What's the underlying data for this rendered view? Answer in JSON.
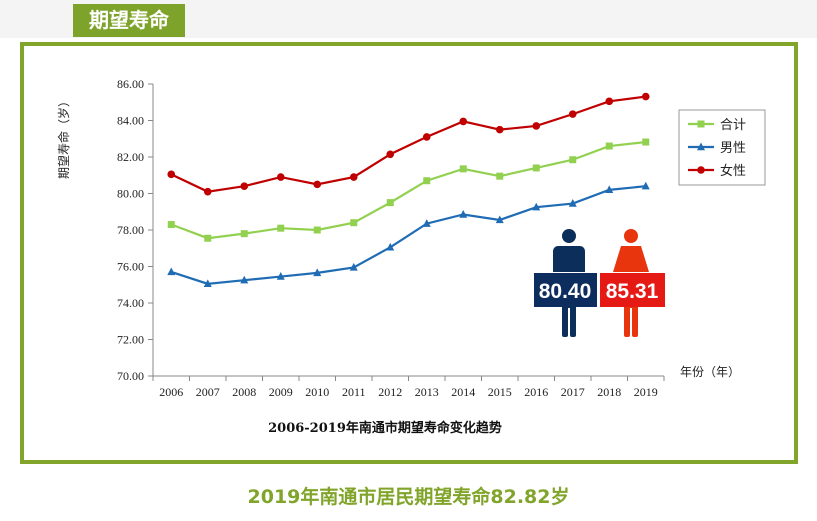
{
  "header": {
    "title": "期望寿命"
  },
  "footer": {
    "title": "2019年南通市居民期望寿命82.82岁"
  },
  "badges": {
    "male": "80.40",
    "female": "85.31"
  },
  "chart_data": {
    "type": "line",
    "title": "2006-2019年南通市期望寿命变化趋势",
    "xlabel": "年份（年）",
    "ylabel": "期望寿命（岁）",
    "ylim": [
      70,
      86
    ],
    "yticks": [
      "70.00",
      "72.00",
      "74.00",
      "76.00",
      "78.00",
      "80.00",
      "82.00",
      "84.00",
      "86.00"
    ],
    "legend_position": "right",
    "grid": false,
    "x": [
      "2006",
      "2007",
      "2008",
      "2009",
      "2010",
      "2011",
      "2012",
      "2013",
      "2014",
      "2015",
      "2016",
      "2017",
      "2018",
      "2019"
    ],
    "series": [
      {
        "name": "合计",
        "color": "#92d050",
        "marker": "square",
        "values": [
          78.3,
          77.55,
          77.8,
          78.1,
          78.0,
          78.4,
          79.5,
          80.7,
          81.35,
          80.95,
          81.4,
          81.85,
          82.6,
          82.82
        ]
      },
      {
        "name": "男性",
        "color": "#1f6cb5",
        "marker": "triangle",
        "values": [
          75.7,
          75.05,
          75.25,
          75.45,
          75.65,
          75.95,
          77.05,
          78.35,
          78.85,
          78.55,
          79.25,
          79.45,
          80.2,
          80.4
        ]
      },
      {
        "name": "女性",
        "color": "#c00000",
        "marker": "circle",
        "values": [
          81.05,
          80.1,
          80.4,
          80.9,
          80.5,
          80.9,
          82.15,
          83.1,
          83.95,
          83.5,
          83.7,
          84.35,
          85.05,
          85.31
        ]
      }
    ]
  }
}
